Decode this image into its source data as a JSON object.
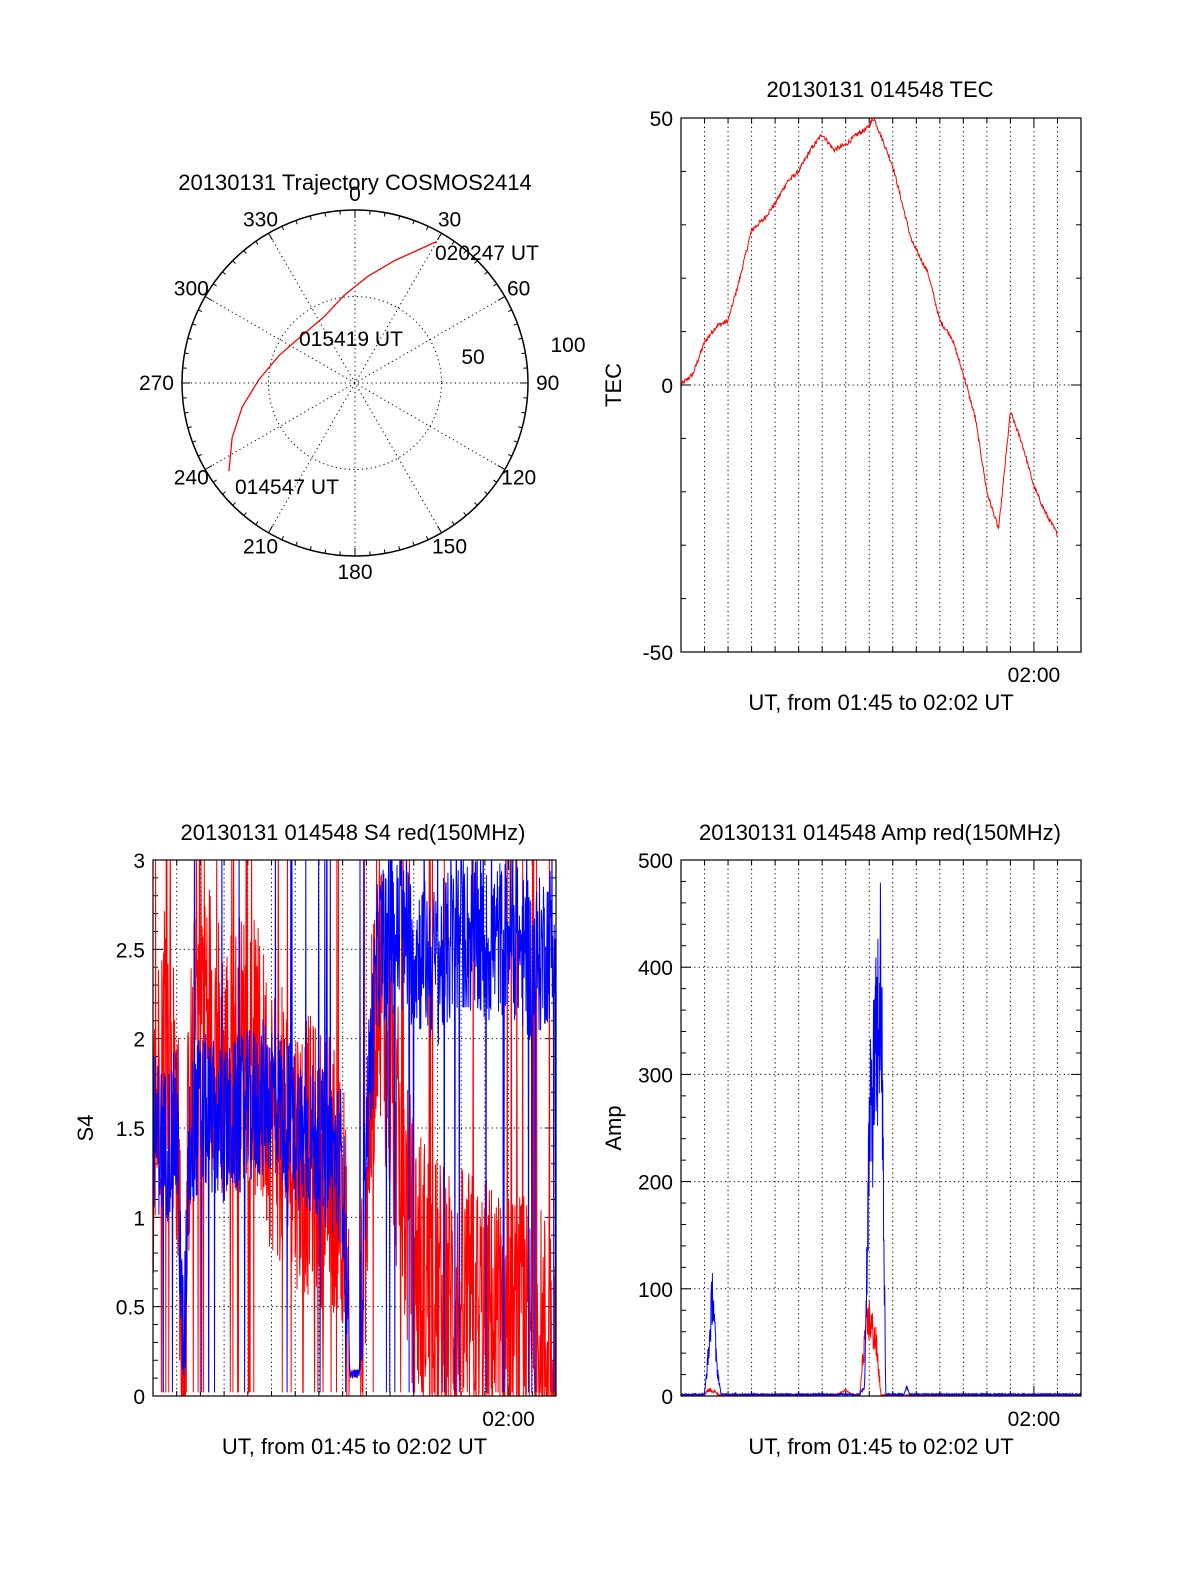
{
  "colors": {
    "red": "#ff0000",
    "blue": "#0000ff",
    "axis": "#000000"
  },
  "chart_data": [
    {
      "type": "polar",
      "title": "20130131 Trajectory COSMOS2414",
      "angle_labels": [
        "0",
        "30",
        "60",
        "90",
        "120",
        "150",
        "180",
        "210",
        "240",
        "270",
        "300",
        "330"
      ],
      "radius_labels": [
        "50",
        "100"
      ],
      "track": {
        "color": "red",
        "points": [
          {
            "azimuth": 235,
            "elevation": 10
          },
          {
            "azimuth": 246,
            "elevation": 20
          },
          {
            "azimuth": 258,
            "elevation": 30
          },
          {
            "azimuth": 272,
            "elevation": 40
          },
          {
            "azimuth": 290,
            "elevation": 48
          },
          {
            "azimuth": 312,
            "elevation": 53
          },
          {
            "azimuth": 335,
            "elevation": 52
          },
          {
            "azimuth": 353,
            "elevation": 44
          },
          {
            "azimuth": 7,
            "elevation": 34
          },
          {
            "azimuth": 18,
            "elevation": 23
          },
          {
            "azimuth": 25,
            "elevation": 14
          },
          {
            "azimuth": 30,
            "elevation": 5
          }
        ]
      },
      "annotations": [
        "020247 UT",
        "015419 UT",
        "014547 UT"
      ]
    },
    {
      "type": "line",
      "title": "20130131 014548 TEC",
      "xlabel": "UT, from 01:45 to 02:02 UT",
      "ylabel": "TEC",
      "xlim": [
        0,
        17
      ],
      "ylim": [
        -50,
        50
      ],
      "yticks": [
        -50,
        0,
        50
      ],
      "xtick_labels": [
        {
          "value": 15,
          "label": "02:00"
        }
      ],
      "series": [
        {
          "color": "red",
          "x": [
            0,
            0.5,
            1.0,
            1.5,
            2.0,
            2.5,
            3.0,
            3.5,
            4.0,
            4.5,
            5.0,
            5.5,
            6.0,
            6.5,
            7.0,
            7.5,
            7.9,
            8.2,
            9.0,
            9.8,
            10.5,
            11.0,
            11.5,
            12.0,
            12.5,
            13.0,
            13.5,
            14.0,
            14.5,
            15.0,
            15.5,
            16.0
          ],
          "y": [
            0,
            2,
            8,
            11,
            12,
            20,
            29,
            31,
            34,
            38,
            40,
            44,
            47,
            44,
            45,
            47,
            48,
            50,
            41,
            27,
            21,
            12,
            9,
            2,
            -6,
            -20,
            -27,
            -5,
            -11,
            -19,
            -24,
            -28
          ]
        }
      ]
    },
    {
      "type": "line",
      "title": "20130131 014548 S4 red(150MHz)",
      "xlabel": "UT, from 01:45 to 02:02 UT",
      "ylabel": "S4",
      "xlim": [
        0,
        17
      ],
      "ylim": [
        0,
        3
      ],
      "yticks": [
        0,
        0.5,
        1,
        1.5,
        2,
        2.5,
        3
      ],
      "ytick_labels": [
        "0",
        "0.5",
        "1",
        "1.5",
        "2",
        "2.5",
        "3"
      ],
      "xtick_labels": [
        {
          "value": 15,
          "label": "02:00"
        }
      ],
      "series": [
        {
          "color": "red",
          "note": "noisy",
          "x": [
            0,
            0.5,
            1.0,
            1.3,
            1.5,
            2.0,
            3.0,
            4.0,
            5.0,
            6.0,
            7.0,
            8.0,
            8.3,
            8.7,
            9.0,
            9.5,
            10.0,
            10.5,
            11.0,
            12.0,
            13.0,
            14.0,
            15.0,
            16.0,
            17.0
          ],
          "y": [
            1.4,
            2.2,
            1.6,
            0.12,
            1.5,
            2.4,
            1.8,
            2.0,
            1.6,
            1.4,
            1.3,
            1.2,
            0.1,
            0.1,
            1.2,
            2.5,
            1.8,
            1.2,
            0.8,
            0.55,
            0.5,
            0.45,
            0.35,
            0.3,
            0.25
          ]
        },
        {
          "color": "blue",
          "note": "noisy",
          "x": [
            0,
            0.5,
            1.0,
            1.3,
            1.5,
            2.0,
            3.0,
            4.0,
            5.0,
            6.0,
            7.0,
            8.0,
            8.3,
            8.7,
            9.0,
            9.5,
            10.0,
            11.0,
            12.0,
            13.0,
            14.0,
            15.0,
            16.0,
            17.0
          ],
          "y": [
            1.5,
            1.4,
            1.5,
            0.1,
            1.4,
            1.6,
            1.5,
            1.6,
            1.7,
            1.5,
            1.4,
            1.3,
            0.1,
            0.1,
            1.5,
            2.5,
            2.6,
            2.5,
            2.4,
            2.6,
            2.5,
            2.6,
            2.4,
            2.6
          ]
        }
      ]
    },
    {
      "type": "line",
      "title": "20130131 014548 Amp red(150MHz)",
      "xlabel": "UT, from 01:45 to 02:02 UT",
      "ylabel": "Amp",
      "xlim": [
        0,
        17
      ],
      "ylim": [
        0,
        500
      ],
      "yticks": [
        0,
        100,
        200,
        300,
        400,
        500
      ],
      "xtick_labels": [
        {
          "value": 15,
          "label": "02:00"
        }
      ],
      "series": [
        {
          "color": "red",
          "x": [
            0,
            1.0,
            1.2,
            1.4,
            1.6,
            2.0,
            6.6,
            7.0,
            7.3,
            7.6,
            7.8,
            8.0,
            8.3,
            8.5,
            8.8,
            9.0,
            10.0,
            17.0
          ],
          "y": [
            0,
            0,
            8,
            5,
            0,
            0,
            0,
            5,
            0,
            0,
            65,
            90,
            60,
            0,
            0,
            0,
            0,
            0
          ]
        },
        {
          "color": "blue",
          "x": [
            0,
            1.0,
            1.2,
            1.35,
            1.5,
            1.7,
            2.0,
            7.6,
            7.8,
            8.0,
            8.3,
            8.5,
            8.7,
            9.0,
            9.5,
            9.6,
            9.7,
            17.0
          ],
          "y": [
            1,
            1,
            60,
            125,
            40,
            1,
            1,
            1,
            10,
            300,
            400,
            485,
            1,
            1,
            1,
            12,
            1,
            1
          ]
        }
      ]
    }
  ]
}
